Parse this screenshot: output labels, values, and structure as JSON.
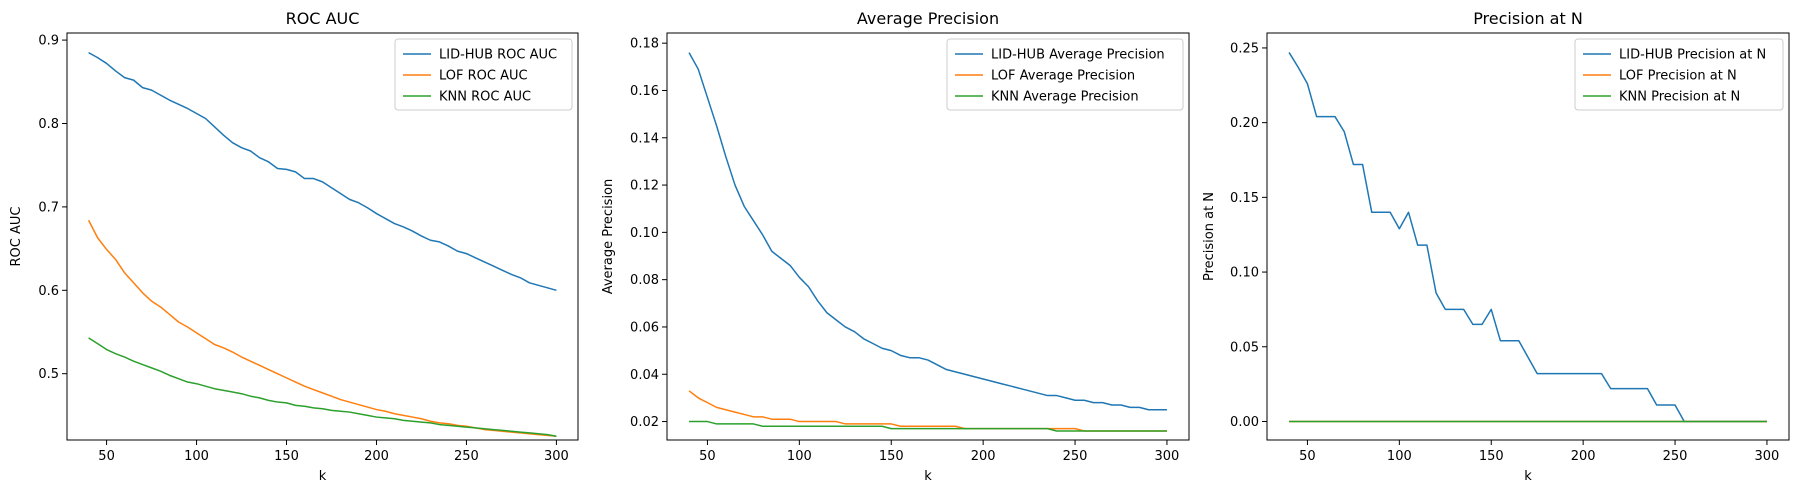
{
  "chart_data": [
    {
      "type": "line",
      "title": "ROC AUC",
      "xlabel": "k",
      "ylabel": "ROC AUC",
      "xlim": [
        28,
        312
      ],
      "ylim": [
        0.4205,
        0.9085
      ],
      "xticks": [
        50,
        100,
        150,
        200,
        250,
        300
      ],
      "yticks": [
        0.5,
        0.6,
        0.7,
        0.8,
        0.9
      ],
      "x": [
        40,
        45,
        50,
        55,
        60,
        65,
        70,
        75,
        80,
        85,
        90,
        95,
        100,
        105,
        110,
        115,
        120,
        125,
        130,
        135,
        140,
        145,
        150,
        155,
        160,
        165,
        170,
        175,
        180,
        185,
        190,
        195,
        200,
        205,
        210,
        215,
        220,
        225,
        230,
        235,
        240,
        245,
        250,
        255,
        260,
        265,
        270,
        275,
        280,
        285,
        290,
        295,
        300
      ],
      "series": [
        {
          "name": "LID-HUB ROC AUC",
          "color": "#1f77b4",
          "values": [
            0.885,
            0.879,
            0.872,
            0.863,
            0.855,
            0.852,
            0.843,
            0.84,
            0.834,
            0.828,
            0.823,
            0.818,
            0.812,
            0.806,
            0.796,
            0.786,
            0.777,
            0.771,
            0.767,
            0.759,
            0.754,
            0.746,
            0.745,
            0.742,
            0.734,
            0.734,
            0.73,
            0.723,
            0.716,
            0.709,
            0.705,
            0.699,
            0.692,
            0.686,
            0.68,
            0.676,
            0.671,
            0.665,
            0.66,
            0.658,
            0.653,
            0.647,
            0.644,
            0.639,
            0.634,
            0.629,
            0.624,
            0.619,
            0.615,
            0.609,
            0.606,
            0.603,
            0.6
          ]
        },
        {
          "name": "LOF ROC AUC",
          "color": "#ff7f0e",
          "values": [
            0.684,
            0.663,
            0.649,
            0.637,
            0.621,
            0.609,
            0.597,
            0.587,
            0.58,
            0.571,
            0.562,
            0.556,
            0.549,
            0.542,
            0.535,
            0.531,
            0.526,
            0.52,
            0.515,
            0.51,
            0.505,
            0.5,
            0.495,
            0.49,
            0.485,
            0.481,
            0.477,
            0.473,
            0.469,
            0.466,
            0.463,
            0.46,
            0.457,
            0.455,
            0.452,
            0.45,
            0.448,
            0.446,
            0.443,
            0.441,
            0.44,
            0.438,
            0.437,
            0.435,
            0.433,
            0.432,
            0.431,
            0.43,
            0.429,
            0.428,
            0.427,
            0.426,
            0.425
          ]
        },
        {
          "name": "KNN ROC AUC",
          "color": "#2ca02c",
          "values": [
            0.543,
            0.536,
            0.529,
            0.524,
            0.52,
            0.515,
            0.511,
            0.507,
            0.503,
            0.498,
            0.494,
            0.49,
            0.488,
            0.485,
            0.482,
            0.48,
            0.478,
            0.476,
            0.473,
            0.471,
            0.468,
            0.466,
            0.465,
            0.462,
            0.461,
            0.459,
            0.458,
            0.456,
            0.455,
            0.454,
            0.452,
            0.45,
            0.448,
            0.447,
            0.446,
            0.444,
            0.443,
            0.442,
            0.441,
            0.439,
            0.438,
            0.437,
            0.436,
            0.435,
            0.434,
            0.433,
            0.432,
            0.431,
            0.43,
            0.429,
            0.428,
            0.427,
            0.425
          ]
        }
      ],
      "legend": "upper right"
    },
    {
      "type": "line",
      "title": "Average Precision",
      "xlabel": "k",
      "ylabel": "Average Precision",
      "xlim": [
        28,
        312
      ],
      "ylim": [
        0.0122,
        0.1843
      ],
      "xticks": [
        50,
        100,
        150,
        200,
        250,
        300
      ],
      "yticks": [
        0.02,
        0.04,
        0.06,
        0.08,
        0.1,
        0.12,
        0.14,
        0.16,
        0.18
      ],
      "x": [
        40,
        45,
        50,
        55,
        60,
        65,
        70,
        75,
        80,
        85,
        90,
        95,
        100,
        105,
        110,
        115,
        120,
        125,
        130,
        135,
        140,
        145,
        150,
        155,
        160,
        165,
        170,
        175,
        180,
        185,
        190,
        195,
        200,
        205,
        210,
        215,
        220,
        225,
        230,
        235,
        240,
        245,
        250,
        255,
        260,
        265,
        270,
        275,
        280,
        285,
        290,
        295,
        300
      ],
      "series": [
        {
          "name": "LID-HUB Average Precision",
          "color": "#1f77b4",
          "values": [
            0.176,
            0.169,
            0.157,
            0.145,
            0.132,
            0.12,
            0.111,
            0.105,
            0.099,
            0.092,
            0.089,
            0.086,
            0.081,
            0.077,
            0.071,
            0.066,
            0.063,
            0.06,
            0.058,
            0.055,
            0.053,
            0.051,
            0.05,
            0.048,
            0.047,
            0.047,
            0.046,
            0.044,
            0.042,
            0.041,
            0.04,
            0.039,
            0.038,
            0.037,
            0.036,
            0.035,
            0.034,
            0.033,
            0.032,
            0.031,
            0.031,
            0.03,
            0.029,
            0.029,
            0.028,
            0.028,
            0.027,
            0.027,
            0.026,
            0.026,
            0.025,
            0.025,
            0.025
          ]
        },
        {
          "name": "LOF Average Precision",
          "color": "#ff7f0e",
          "values": [
            0.033,
            0.03,
            0.028,
            0.026,
            0.025,
            0.024,
            0.023,
            0.022,
            0.022,
            0.021,
            0.021,
            0.021,
            0.02,
            0.02,
            0.02,
            0.02,
            0.02,
            0.019,
            0.019,
            0.019,
            0.019,
            0.019,
            0.019,
            0.018,
            0.018,
            0.018,
            0.018,
            0.018,
            0.018,
            0.018,
            0.017,
            0.017,
            0.017,
            0.017,
            0.017,
            0.017,
            0.017,
            0.017,
            0.017,
            0.017,
            0.017,
            0.017,
            0.017,
            0.016,
            0.016,
            0.016,
            0.016,
            0.016,
            0.016,
            0.016,
            0.016,
            0.016,
            0.016
          ]
        },
        {
          "name": "KNN Average Precision",
          "color": "#2ca02c",
          "values": [
            0.02,
            0.02,
            0.02,
            0.019,
            0.019,
            0.019,
            0.019,
            0.019,
            0.018,
            0.018,
            0.018,
            0.018,
            0.018,
            0.018,
            0.018,
            0.018,
            0.018,
            0.018,
            0.018,
            0.018,
            0.018,
            0.018,
            0.017,
            0.017,
            0.017,
            0.017,
            0.017,
            0.017,
            0.017,
            0.017,
            0.017,
            0.017,
            0.017,
            0.017,
            0.017,
            0.017,
            0.017,
            0.017,
            0.017,
            0.017,
            0.016,
            0.016,
            0.016,
            0.016,
            0.016,
            0.016,
            0.016,
            0.016,
            0.016,
            0.016,
            0.016,
            0.016,
            0.016
          ]
        }
      ],
      "legend": "upper right"
    },
    {
      "type": "line",
      "title": "Precision at N",
      "xlabel": "k",
      "ylabel": "Precision at N",
      "xlim": [
        28,
        312
      ],
      "ylim": [
        -0.0124,
        0.26
      ],
      "xticks": [
        50,
        100,
        150,
        200,
        250,
        300
      ],
      "yticks": [
        0.0,
        0.05,
        0.1,
        0.15,
        0.2,
        0.25
      ],
      "x": [
        40,
        45,
        50,
        55,
        60,
        65,
        70,
        75,
        80,
        85,
        90,
        95,
        100,
        105,
        110,
        115,
        120,
        125,
        130,
        135,
        140,
        145,
        150,
        155,
        160,
        165,
        170,
        175,
        180,
        185,
        190,
        195,
        200,
        205,
        210,
        215,
        220,
        225,
        230,
        235,
        240,
        245,
        250,
        255,
        260,
        265,
        270,
        275,
        280,
        285,
        290,
        295,
        300
      ],
      "series": [
        {
          "name": "LID-HUB Precision at N",
          "color": "#1f77b4",
          "values": [
            0.247,
            0.237,
            0.226,
            0.204,
            0.204,
            0.204,
            0.194,
            0.172,
            0.172,
            0.14,
            0.14,
            0.14,
            0.129,
            0.14,
            0.118,
            0.118,
            0.086,
            0.075,
            0.075,
            0.075,
            0.065,
            0.065,
            0.075,
            0.054,
            0.054,
            0.054,
            0.043,
            0.032,
            0.032,
            0.032,
            0.032,
            0.032,
            0.032,
            0.032,
            0.032,
            0.022,
            0.022,
            0.022,
            0.022,
            0.022,
            0.011,
            0.011,
            0.011,
            0.0,
            0.0,
            0.0,
            0.0,
            0.0,
            0.0,
            0.0,
            0.0,
            0.0,
            0.0
          ]
        },
        {
          "name": "LOF Precision at N",
          "color": "#ff7f0e",
          "values": [
            0,
            0,
            0,
            0,
            0,
            0,
            0,
            0,
            0,
            0,
            0,
            0,
            0,
            0,
            0,
            0,
            0,
            0,
            0,
            0,
            0,
            0,
            0,
            0,
            0,
            0,
            0,
            0,
            0,
            0,
            0,
            0,
            0,
            0,
            0,
            0,
            0,
            0,
            0,
            0,
            0,
            0,
            0,
            0,
            0,
            0,
            0,
            0,
            0,
            0,
            0,
            0,
            0
          ]
        },
        {
          "name": "KNN Precision at N",
          "color": "#2ca02c",
          "values": [
            0,
            0,
            0,
            0,
            0,
            0,
            0,
            0,
            0,
            0,
            0,
            0,
            0,
            0,
            0,
            0,
            0,
            0,
            0,
            0,
            0,
            0,
            0,
            0,
            0,
            0,
            0,
            0,
            0,
            0,
            0,
            0,
            0,
            0,
            0,
            0,
            0,
            0,
            0,
            0,
            0,
            0,
            0,
            0,
            0,
            0,
            0,
            0,
            0,
            0,
            0,
            0,
            0
          ]
        }
      ],
      "legend": "upper right"
    }
  ]
}
